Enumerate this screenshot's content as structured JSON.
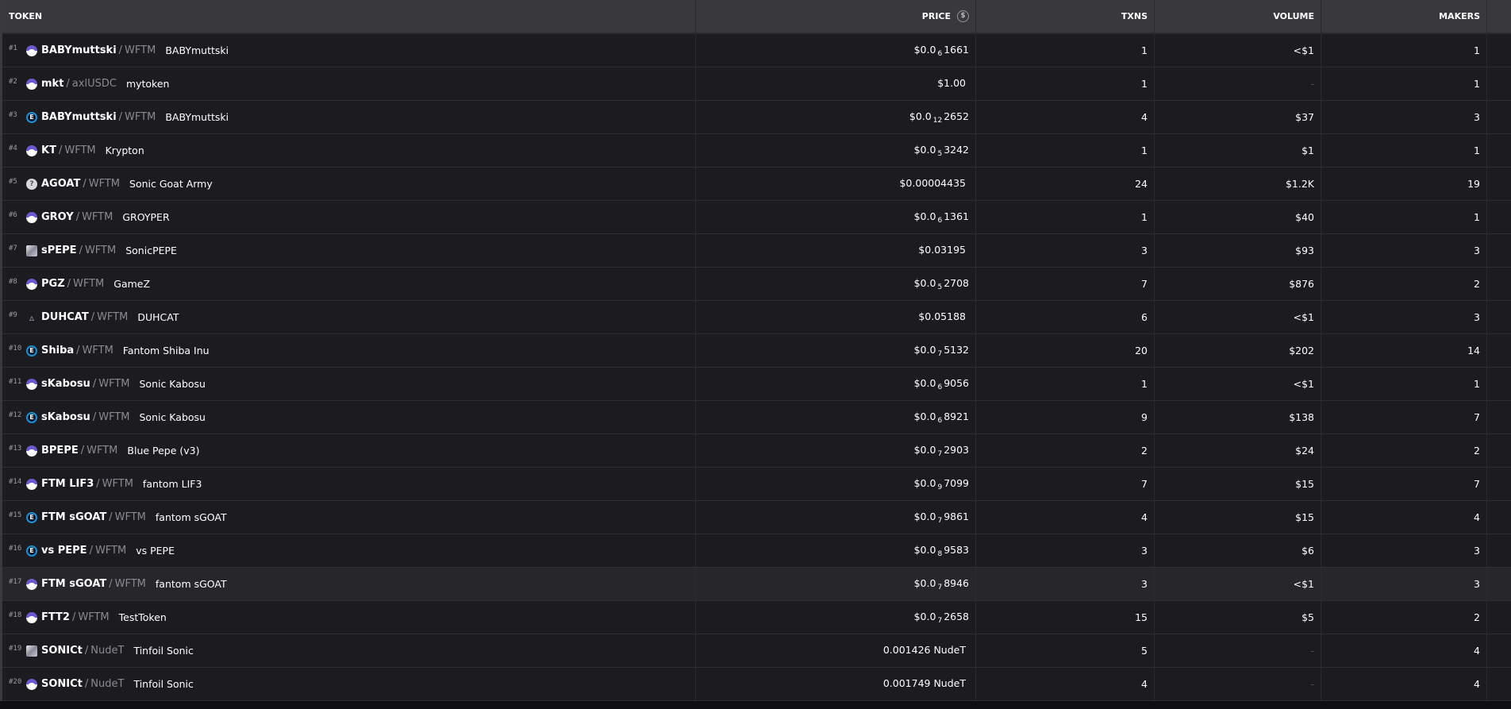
{
  "columns": {
    "token": "TOKEN",
    "price": "PRICE",
    "txns": "TXNS",
    "volume": "VOLUME",
    "makers": "MAKERS",
    "price_icon": "usd-circle-icon"
  },
  "highlight_row": 17,
  "rows": [
    {
      "rank": "#1",
      "icon": "wizard",
      "symbol": "BABYmuttski",
      "quote": "WFTM",
      "name": "BABYmuttski",
      "price": {
        "pre": "$0.0",
        "sub": "6",
        "post": "1661"
      },
      "txns": "1",
      "volume": "<$1",
      "makers": "1"
    },
    {
      "rank": "#2",
      "icon": "wizard",
      "symbol": "mkt",
      "quote": "axlUSDC",
      "name": "mytoken",
      "price": {
        "pre": "$1.00",
        "sub": "",
        "post": ""
      },
      "txns": "1",
      "volume": "-",
      "makers": "1"
    },
    {
      "rank": "#3",
      "icon": "ecoin",
      "symbol": "BABYmuttski",
      "quote": "WFTM",
      "name": "BABYmuttski",
      "price": {
        "pre": "$0.0",
        "sub": "12",
        "post": "2652"
      },
      "txns": "4",
      "volume": "$37",
      "makers": "3"
    },
    {
      "rank": "#4",
      "icon": "wizard",
      "symbol": "KT",
      "quote": "WFTM",
      "name": "Krypton",
      "price": {
        "pre": "$0.0",
        "sub": "5",
        "post": "3242"
      },
      "txns": "1",
      "volume": "$1",
      "makers": "1"
    },
    {
      "rank": "#5",
      "icon": "question",
      "symbol": "AGOAT",
      "quote": "WFTM",
      "name": "Sonic Goat Army",
      "price": {
        "pre": "$0.00004435",
        "sub": "",
        "post": ""
      },
      "txns": "24",
      "volume": "$1.2K",
      "makers": "19"
    },
    {
      "rank": "#6",
      "icon": "wizard",
      "symbol": "GROY",
      "quote": "WFTM",
      "name": "GROYPER",
      "price": {
        "pre": "$0.0",
        "sub": "6",
        "post": "1361"
      },
      "txns": "1",
      "volume": "$40",
      "makers": "1"
    },
    {
      "rank": "#7",
      "icon": "cube",
      "symbol": "sPEPE",
      "quote": "WFTM",
      "name": "SonicPEPE",
      "price": {
        "pre": "$0.03195",
        "sub": "",
        "post": ""
      },
      "txns": "3",
      "volume": "$93",
      "makers": "3"
    },
    {
      "rank": "#8",
      "icon": "wizard",
      "symbol": "PGZ",
      "quote": "WFTM",
      "name": "GameZ",
      "price": {
        "pre": "$0.0",
        "sub": "5",
        "post": "2708"
      },
      "txns": "7",
      "volume": "$876",
      "makers": "2"
    },
    {
      "rank": "#9",
      "icon": "triangle",
      "symbol": "DUHCAT",
      "quote": "WFTM",
      "name": "DUHCAT",
      "price": {
        "pre": "$0.05188",
        "sub": "",
        "post": ""
      },
      "txns": "6",
      "volume": "<$1",
      "makers": "3"
    },
    {
      "rank": "#10",
      "icon": "ecoin",
      "symbol": "Shiba",
      "quote": "WFTM",
      "name": "Fantom Shiba Inu",
      "price": {
        "pre": "$0.0",
        "sub": "7",
        "post": "5132"
      },
      "txns": "20",
      "volume": "$202",
      "makers": "14"
    },
    {
      "rank": "#11",
      "icon": "wizard",
      "symbol": "sKabosu",
      "quote": "WFTM",
      "name": "Sonic Kabosu",
      "price": {
        "pre": "$0.0",
        "sub": "6",
        "post": "9056"
      },
      "txns": "1",
      "volume": "<$1",
      "makers": "1"
    },
    {
      "rank": "#12",
      "icon": "ecoin",
      "symbol": "sKabosu",
      "quote": "WFTM",
      "name": "Sonic Kabosu",
      "price": {
        "pre": "$0.0",
        "sub": "6",
        "post": "8921"
      },
      "txns": "9",
      "volume": "$138",
      "makers": "7"
    },
    {
      "rank": "#13",
      "icon": "wizard",
      "symbol": "BPEPE",
      "quote": "WFTM",
      "name": "Blue Pepe (v3)",
      "price": {
        "pre": "$0.0",
        "sub": "7",
        "post": "2903"
      },
      "txns": "2",
      "volume": "$24",
      "makers": "2"
    },
    {
      "rank": "#14",
      "icon": "wizard",
      "symbol": "FTM LIF3",
      "quote": "WFTM",
      "name": "fantom LIF3",
      "price": {
        "pre": "$0.0",
        "sub": "9",
        "post": "7099"
      },
      "txns": "7",
      "volume": "$15",
      "makers": "7"
    },
    {
      "rank": "#15",
      "icon": "ecoin",
      "symbol": "FTM sGOAT",
      "quote": "WFTM",
      "name": "fantom sGOAT",
      "price": {
        "pre": "$0.0",
        "sub": "7",
        "post": "9861"
      },
      "txns": "4",
      "volume": "$15",
      "makers": "4"
    },
    {
      "rank": "#16",
      "icon": "ecoin",
      "symbol": "vs PEPE",
      "quote": "WFTM",
      "name": "vs PEPE",
      "price": {
        "pre": "$0.0",
        "sub": "8",
        "post": "9583"
      },
      "txns": "3",
      "volume": "$6",
      "makers": "3"
    },
    {
      "rank": "#17",
      "icon": "wizard",
      "symbol": "FTM sGOAT",
      "quote": "WFTM",
      "name": "fantom sGOAT",
      "price": {
        "pre": "$0.0",
        "sub": "7",
        "post": "8946"
      },
      "txns": "3",
      "volume": "<$1",
      "makers": "3"
    },
    {
      "rank": "#18",
      "icon": "wizard",
      "symbol": "FTT2",
      "quote": "WFTM",
      "name": "TestToken",
      "price": {
        "pre": "$0.0",
        "sub": "7",
        "post": "2658"
      },
      "txns": "15",
      "volume": "$5",
      "makers": "2"
    },
    {
      "rank": "#19",
      "icon": "cube",
      "symbol": "SONICt",
      "quote": "NudeT",
      "name": "Tinfoil Sonic",
      "price": {
        "pre": "0.001426 NudeT",
        "sub": "",
        "post": ""
      },
      "txns": "5",
      "volume": "-",
      "makers": "4"
    },
    {
      "rank": "#20",
      "icon": "wizard",
      "symbol": "SONICt",
      "quote": "NudeT",
      "name": "Tinfoil Sonic",
      "price": {
        "pre": "0.001749 NudeT",
        "sub": "",
        "post": ""
      },
      "txns": "4",
      "volume": "-",
      "makers": "4"
    }
  ]
}
